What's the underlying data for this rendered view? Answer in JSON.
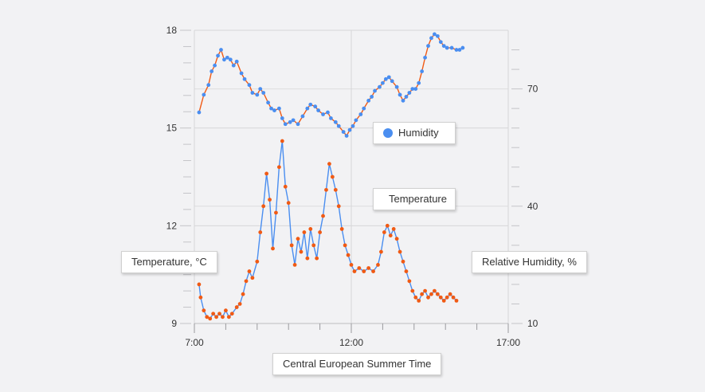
{
  "chart_data": {
    "type": "line",
    "xlabel": "Central European Summer Time",
    "ylabel": "Temperature, °C",
    "y2label": "Relative Humidity, %",
    "x_ticks": [
      {
        "hour": 7,
        "label": "7:00"
      },
      {
        "hour": 12,
        "label": "12:00"
      },
      {
        "hour": 17,
        "label": "17:00"
      }
    ],
    "xlim_hours": [
      7,
      17
    ],
    "ylim": [
      9,
      18
    ],
    "y_ticks": [
      9,
      12,
      15,
      18
    ],
    "y2lim": [
      10,
      85
    ],
    "y2_ticks": [
      10,
      40,
      70
    ],
    "grid": true,
    "series": [
      {
        "name": "Humidity",
        "axis": "right",
        "marker_color": "#4a8ef0",
        "line_color": "#f05a14",
        "points": [
          [
            7.15,
            64.0
          ],
          [
            7.3,
            68.5
          ],
          [
            7.45,
            71.0
          ],
          [
            7.55,
            74.5
          ],
          [
            7.65,
            76.0
          ],
          [
            7.75,
            78.5
          ],
          [
            7.85,
            80.0
          ],
          [
            7.95,
            77.5
          ],
          [
            8.05,
            78.0
          ],
          [
            8.15,
            77.5
          ],
          [
            8.25,
            76.0
          ],
          [
            8.35,
            77.0
          ],
          [
            8.5,
            74.0
          ],
          [
            8.6,
            72.5
          ],
          [
            8.75,
            71.0
          ],
          [
            8.85,
            69.0
          ],
          [
            9.0,
            68.5
          ],
          [
            9.1,
            70.0
          ],
          [
            9.2,
            69.0
          ],
          [
            9.35,
            66.5
          ],
          [
            9.45,
            65.0
          ],
          [
            9.55,
            64.5
          ],
          [
            9.7,
            65.0
          ],
          [
            9.8,
            62.5
          ],
          [
            9.9,
            61.0
          ],
          [
            10.05,
            61.5
          ],
          [
            10.15,
            62.0
          ],
          [
            10.3,
            61.0
          ],
          [
            10.45,
            63.0
          ],
          [
            10.6,
            65.0
          ],
          [
            10.7,
            66.0
          ],
          [
            10.85,
            65.5
          ],
          [
            10.95,
            64.5
          ],
          [
            11.1,
            63.5
          ],
          [
            11.25,
            64.0
          ],
          [
            11.35,
            62.5
          ],
          [
            11.5,
            61.5
          ],
          [
            11.6,
            60.5
          ],
          [
            11.75,
            59.0
          ],
          [
            11.85,
            58.0
          ],
          [
            11.95,
            59.5
          ],
          [
            12.05,
            60.5
          ],
          [
            12.15,
            62.0
          ],
          [
            12.3,
            63.5
          ],
          [
            12.4,
            65.0
          ],
          [
            12.55,
            67.0
          ],
          [
            12.65,
            68.0
          ],
          [
            12.75,
            69.5
          ],
          [
            12.9,
            70.5
          ],
          [
            13.0,
            71.5
          ],
          [
            13.1,
            72.5
          ],
          [
            13.2,
            73.0
          ],
          [
            13.3,
            72.0
          ],
          [
            13.45,
            70.5
          ],
          [
            13.55,
            68.5
          ],
          [
            13.65,
            67.0
          ],
          [
            13.75,
            68.0
          ],
          [
            13.85,
            69.0
          ],
          [
            13.95,
            70.0
          ],
          [
            14.05,
            70.0
          ],
          [
            14.15,
            71.5
          ],
          [
            14.25,
            74.5
          ],
          [
            14.35,
            78.0
          ],
          [
            14.45,
            81.0
          ],
          [
            14.55,
            83.0
          ],
          [
            14.65,
            84.0
          ],
          [
            14.75,
            83.5
          ],
          [
            14.85,
            82.0
          ],
          [
            14.95,
            81.0
          ],
          [
            15.05,
            80.5
          ],
          [
            15.2,
            80.5
          ],
          [
            15.35,
            80.0
          ],
          [
            15.45,
            80.0
          ],
          [
            15.55,
            80.5
          ]
        ]
      },
      {
        "name": "Temperature",
        "axis": "left",
        "marker_color": "#f05a14",
        "line_color": "#4a8ef0",
        "points": [
          [
            7.15,
            10.2
          ],
          [
            7.2,
            9.8
          ],
          [
            7.3,
            9.4
          ],
          [
            7.4,
            9.2
          ],
          [
            7.5,
            9.15
          ],
          [
            7.6,
            9.3
          ],
          [
            7.7,
            9.2
          ],
          [
            7.8,
            9.3
          ],
          [
            7.9,
            9.2
          ],
          [
            8.0,
            9.4
          ],
          [
            8.1,
            9.2
          ],
          [
            8.2,
            9.3
          ],
          [
            8.35,
            9.5
          ],
          [
            8.45,
            9.6
          ],
          [
            8.55,
            9.9
          ],
          [
            8.65,
            10.3
          ],
          [
            8.75,
            10.6
          ],
          [
            8.85,
            10.4
          ],
          [
            9.0,
            10.9
          ],
          [
            9.1,
            11.8
          ],
          [
            9.2,
            12.6
          ],
          [
            9.3,
            13.6
          ],
          [
            9.4,
            12.8
          ],
          [
            9.5,
            11.3
          ],
          [
            9.6,
            12.4
          ],
          [
            9.7,
            13.8
          ],
          [
            9.8,
            14.6
          ],
          [
            9.9,
            13.2
          ],
          [
            10.0,
            12.7
          ],
          [
            10.1,
            11.4
          ],
          [
            10.2,
            10.8
          ],
          [
            10.3,
            11.6
          ],
          [
            10.4,
            11.2
          ],
          [
            10.5,
            11.8
          ],
          [
            10.6,
            11.0
          ],
          [
            10.7,
            11.9
          ],
          [
            10.8,
            11.4
          ],
          [
            10.9,
            11.0
          ],
          [
            11.0,
            11.8
          ],
          [
            11.1,
            12.3
          ],
          [
            11.2,
            13.1
          ],
          [
            11.3,
            13.9
          ],
          [
            11.4,
            13.5
          ],
          [
            11.5,
            13.1
          ],
          [
            11.6,
            12.6
          ],
          [
            11.7,
            11.9
          ],
          [
            11.8,
            11.4
          ],
          [
            11.9,
            11.1
          ],
          [
            12.0,
            10.8
          ],
          [
            12.1,
            10.6
          ],
          [
            12.25,
            10.7
          ],
          [
            12.4,
            10.6
          ],
          [
            12.55,
            10.7
          ],
          [
            12.7,
            10.6
          ],
          [
            12.85,
            10.8
          ],
          [
            12.95,
            11.2
          ],
          [
            13.05,
            11.8
          ],
          [
            13.15,
            12.0
          ],
          [
            13.25,
            11.7
          ],
          [
            13.35,
            11.9
          ],
          [
            13.45,
            11.6
          ],
          [
            13.55,
            11.2
          ],
          [
            13.65,
            10.9
          ],
          [
            13.75,
            10.6
          ],
          [
            13.85,
            10.3
          ],
          [
            13.95,
            10.0
          ],
          [
            14.05,
            9.8
          ],
          [
            14.15,
            9.7
          ],
          [
            14.25,
            9.9
          ],
          [
            14.35,
            10.0
          ],
          [
            14.45,
            9.8
          ],
          [
            14.55,
            9.9
          ],
          [
            14.65,
            10.0
          ],
          [
            14.75,
            9.9
          ],
          [
            14.85,
            9.8
          ],
          [
            14.95,
            9.7
          ],
          [
            15.05,
            9.8
          ],
          [
            15.15,
            9.9
          ],
          [
            15.25,
            9.8
          ],
          [
            15.35,
            9.7
          ]
        ]
      }
    ]
  }
}
